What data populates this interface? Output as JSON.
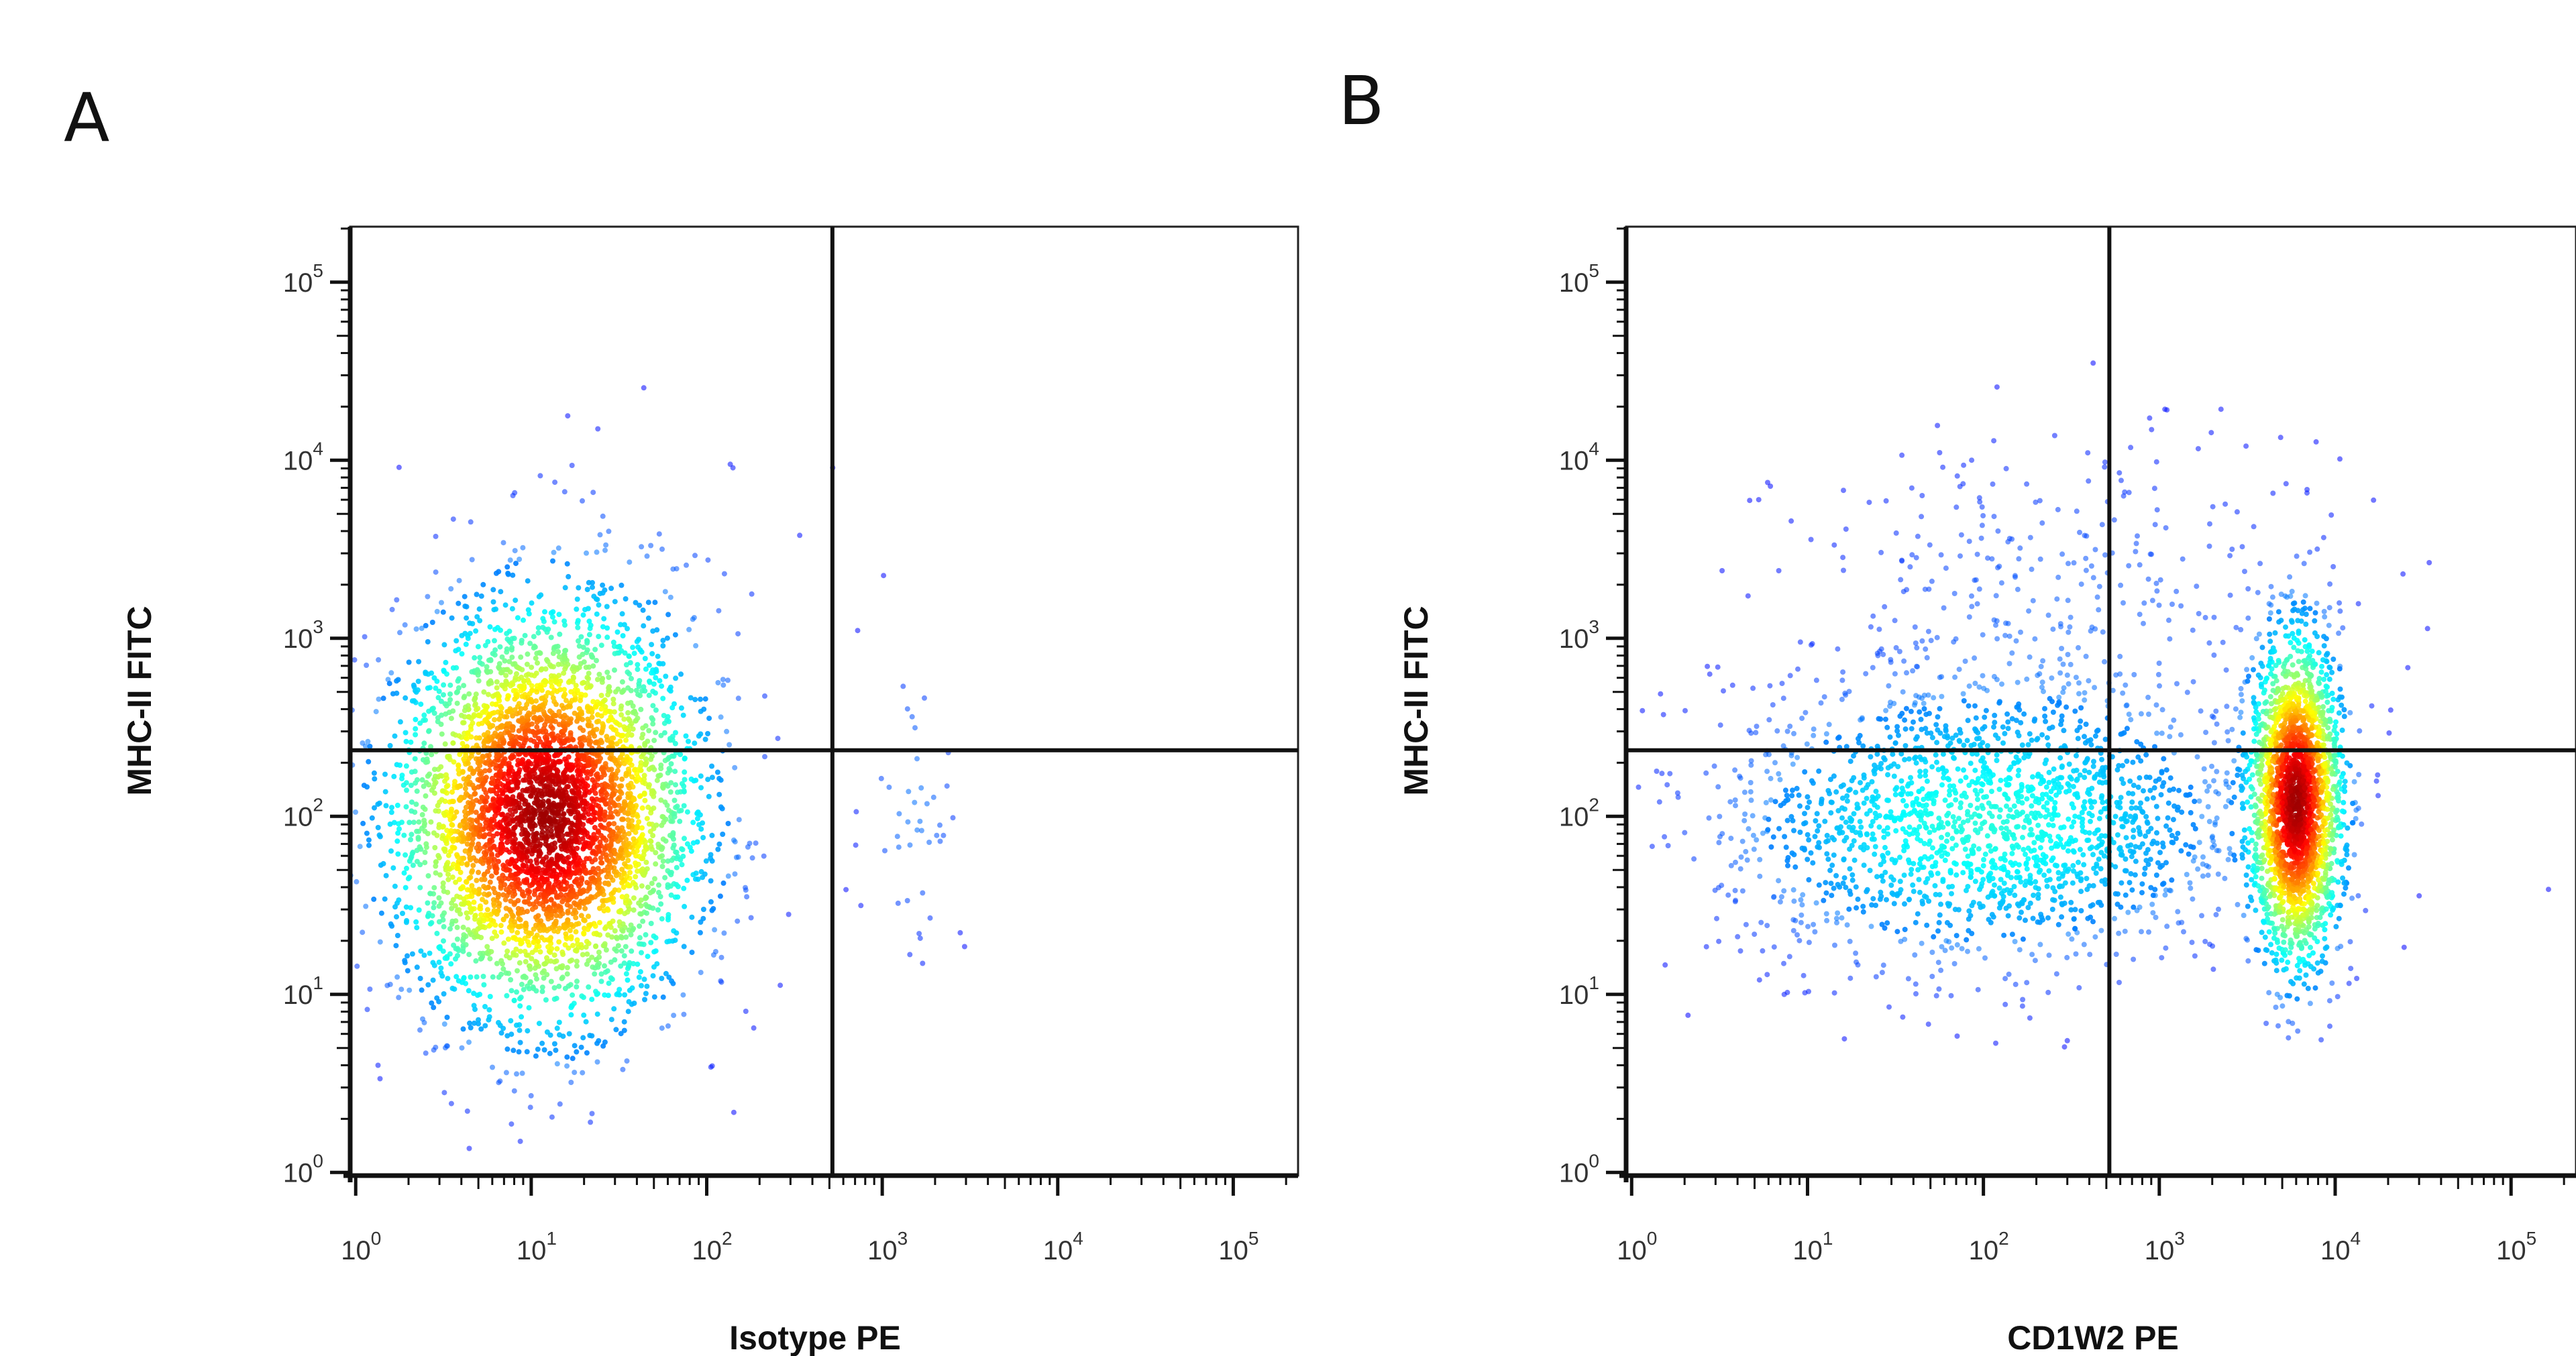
{
  "chart_data": [
    {
      "type": "scatter",
      "subtype": "flow-cytometry-density-dot-plot",
      "panel_label": "A",
      "xlabel": "Isotype PE",
      "ylabel": "MHC-II FITC",
      "xscale": "log",
      "yscale": "log",
      "xlim": [
        0.93,
        234000
      ],
      "ylim": [
        0.96,
        205000
      ],
      "x_ticks": [
        {
          "base": "10",
          "exp": "0"
        },
        {
          "base": "10",
          "exp": "1"
        },
        {
          "base": "10",
          "exp": "2"
        },
        {
          "base": "10",
          "exp": "3"
        },
        {
          "base": "10",
          "exp": "4"
        },
        {
          "base": "10",
          "exp": "5"
        }
      ],
      "y_ticks": [
        {
          "base": "10",
          "exp": "0"
        },
        {
          "base": "10",
          "exp": "1"
        },
        {
          "base": "10",
          "exp": "2"
        },
        {
          "base": "10",
          "exp": "3"
        },
        {
          "base": "10",
          "exp": "4"
        },
        {
          "base": "10",
          "exp": "5"
        }
      ],
      "quadrant_gate": {
        "x": 520,
        "y": 235
      },
      "colormap": "jet (blue low density to red high density)",
      "grid": false,
      "populations": [
        {
          "center_x": 12,
          "center_y": 100,
          "log_sd_x": 0.42,
          "log_sd_y": 0.55,
          "relative_events": 0.97
        },
        {
          "center_x": 1500,
          "center_y": 120,
          "log_sd_x": 0.15,
          "log_sd_y": 0.45,
          "relative_events": 0.01
        },
        {
          "center_x": 30,
          "center_y": 1500,
          "log_sd_x": 0.5,
          "log_sd_y": 0.45,
          "relative_events": 0.02
        }
      ]
    },
    {
      "type": "scatter",
      "subtype": "flow-cytometry-density-dot-plot",
      "panel_label": "B",
      "xlabel": "CD1W2 PE",
      "ylabel": "MHC-II FITC",
      "xscale": "log",
      "yscale": "log",
      "xlim": [
        0.93,
        234000
      ],
      "ylim": [
        0.96,
        205000
      ],
      "x_ticks": [
        {
          "base": "10",
          "exp": "0"
        },
        {
          "base": "10",
          "exp": "1"
        },
        {
          "base": "10",
          "exp": "2"
        },
        {
          "base": "10",
          "exp": "3"
        },
        {
          "base": "10",
          "exp": "4"
        },
        {
          "base": "10",
          "exp": "5"
        }
      ],
      "y_ticks": [
        {
          "base": "10",
          "exp": "0"
        },
        {
          "base": "10",
          "exp": "1"
        },
        {
          "base": "10",
          "exp": "2"
        },
        {
          "base": "10",
          "exp": "3"
        },
        {
          "base": "10",
          "exp": "4"
        },
        {
          "base": "10",
          "exp": "5"
        }
      ],
      "quadrant_gate": {
        "x": 520,
        "y": 235
      },
      "colormap": "jet (blue low density to red high density)",
      "grid": false,
      "populations": [
        {
          "center_x": 6000,
          "center_y": 120,
          "log_sd_x": 0.13,
          "log_sd_y": 0.45,
          "relative_events": 0.5
        },
        {
          "center_x": 100,
          "center_y": 90,
          "log_sd_x": 0.75,
          "log_sd_y": 0.4,
          "relative_events": 0.42
        },
        {
          "center_x": 300,
          "center_y": 1500,
          "log_sd_x": 0.8,
          "log_sd_y": 0.5,
          "relative_events": 0.08
        }
      ]
    }
  ]
}
